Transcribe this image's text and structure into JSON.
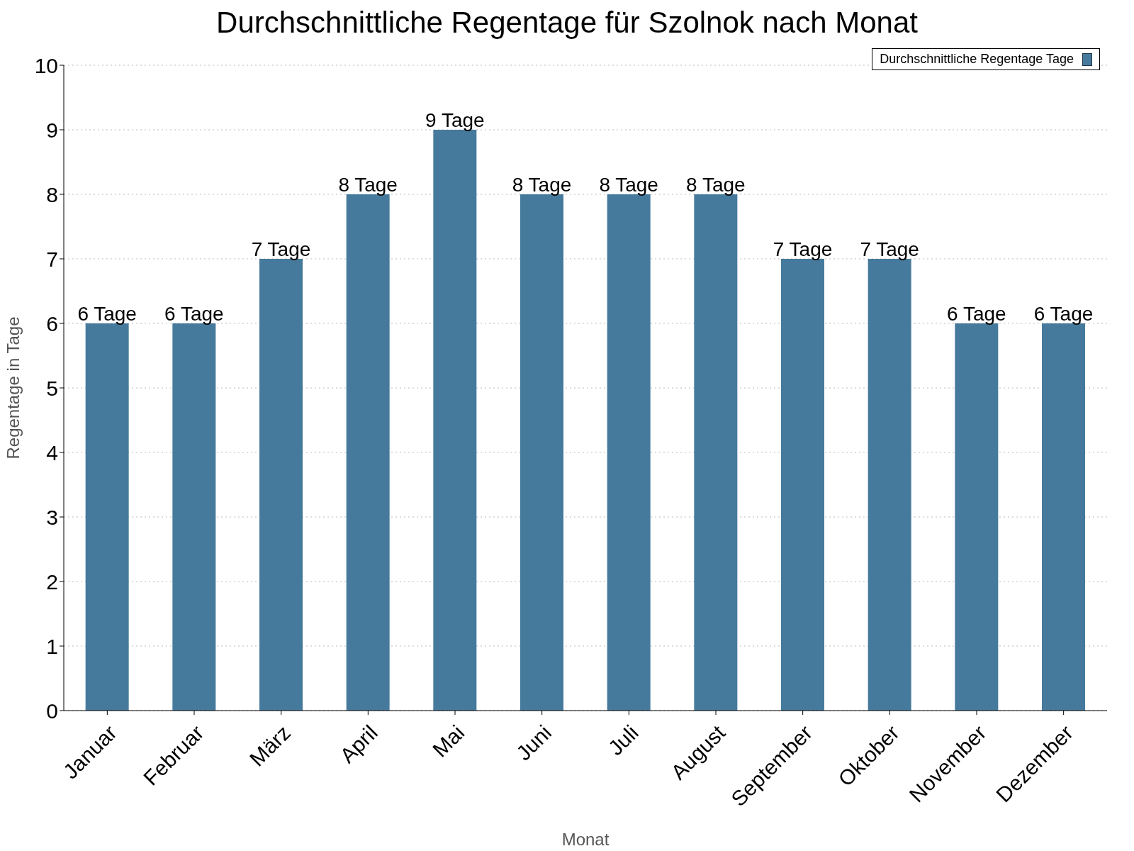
{
  "chart_data": {
    "type": "bar",
    "title": "Durchschnittliche Regentage für Szolnok nach Monat",
    "xlabel": "Monat",
    "ylabel": "Regentage in Tage",
    "categories": [
      "Januar",
      "Februar",
      "März",
      "April",
      "Mai",
      "Juni",
      "Juli",
      "August",
      "September",
      "Oktober",
      "November",
      "Dezember"
    ],
    "series": [
      {
        "name": "Durchschnittliche Regentage Tage",
        "color": "#467a9c",
        "values": [
          6,
          6,
          7,
          8,
          9,
          8,
          8,
          8,
          7,
          7,
          6,
          6
        ],
        "value_labels": [
          "6 Tage",
          "6 Tage",
          "7 Tage",
          "8 Tage",
          "9 Tage",
          "8 Tage",
          "8 Tage",
          "8 Tage",
          "7 Tage",
          "7 Tage",
          "6 Tage",
          "6 Tage"
        ]
      }
    ],
    "ylim": [
      0,
      10
    ],
    "yticks": [
      0,
      1,
      2,
      3,
      4,
      5,
      6,
      7,
      8,
      9,
      10
    ],
    "grid": "y",
    "legend": "top right"
  }
}
